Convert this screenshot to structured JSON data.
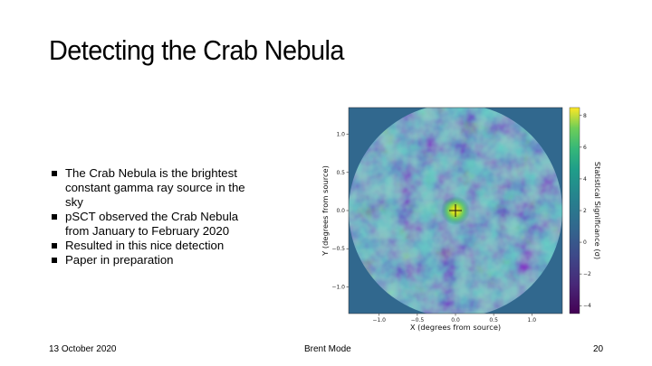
{
  "slide": {
    "title": "Detecting the Crab Nebula",
    "bullets": [
      "The Crab Nebula is the brightest constant gamma ray source in the sky",
      "pSCT observed the Crab Nebula from January to February 2020",
      "Resulted in this nice detection",
      "Paper in preparation"
    ],
    "footer": {
      "date": "13 October 2020",
      "author": "Brent Mode",
      "page_number": "20"
    }
  },
  "chart_data": {
    "type": "heatmap",
    "xlabel": "X (degrees from source)",
    "ylabel": "Y (degrees from source)",
    "xlim": [
      -1.4,
      1.4
    ],
    "ylim": [
      -1.35,
      1.35
    ],
    "xticks": [
      "−1.0",
      "−0.5",
      "0.0",
      "0.5",
      "1.0"
    ],
    "xtick_values": [
      -1.0,
      -0.5,
      0.0,
      0.5,
      1.0
    ],
    "yticks": [
      "1.0",
      "0.5",
      "0.0",
      "−0.5",
      "−1.0"
    ],
    "ytick_values": [
      1.0,
      0.5,
      0.0,
      -0.5,
      -1.0
    ],
    "colorbar": {
      "label": "Statistical Significance (σ)",
      "range": [
        -4.5,
        8.5
      ],
      "ticks": [
        "8",
        "6",
        "4",
        "2",
        "0",
        "−2",
        "−4"
      ],
      "tick_values": [
        8,
        6,
        4,
        2,
        0,
        -2,
        -4
      ],
      "colormap": "viridis"
    },
    "field_radius_deg": 1.4,
    "source_position": {
      "x": 0.0,
      "y": 0.0,
      "peak_significance": 8
    },
    "colors": {
      "outside_field": "#31688e"
    }
  }
}
